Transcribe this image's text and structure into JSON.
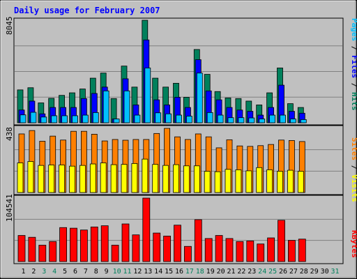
{
  "colors": {
    "background": "#C0C0C0",
    "plot": "#C0C0C0",
    "title": "#0000FF",
    "hits": "#00805C",
    "files": "#0000FF",
    "pages": "#00C0FF",
    "visits": "#FF8000",
    "sites": "#FFFF00",
    "kbytes": "#FF0000",
    "weekend_label": "#00805C",
    "weekday_label": "#000000"
  },
  "chart_data": {
    "type": "bar",
    "title": "Daily usage for February 2007",
    "days": [
      "1",
      "2",
      "3",
      "4",
      "5",
      "6",
      "7",
      "8",
      "9",
      "10",
      "11",
      "12",
      "13",
      "14",
      "15",
      "16",
      "17",
      "18",
      "19",
      "20",
      "21",
      "22",
      "23",
      "24",
      "25",
      "26",
      "27",
      "28",
      "29",
      "30",
      "31"
    ],
    "weekend_days": [
      "3",
      "4",
      "10",
      "11",
      "17",
      "18",
      "24",
      "25",
      "31"
    ],
    "panels": [
      {
        "id": "hits_files_pages",
        "max_label": "8045",
        "ymax": 8045,
        "legend": [
          "Pages",
          "/",
          "Files",
          "/",
          "Hits"
        ],
        "series": [
          {
            "name": "Hits",
            "values": [
              2580,
              2750,
              1560,
              1920,
              2150,
              2350,
              2650,
              3500,
              3900,
              1900,
              4450,
              2800,
              8045,
              3500,
              2800,
              3100,
              2000,
              5750,
              3800,
              2450,
              1950,
              1900,
              1700,
              1400,
              2350,
              4300,
              1500,
              1200
            ]
          },
          {
            "name": "Files",
            "values": [
              1000,
              1700,
              700,
              1200,
              1200,
              1200,
              1900,
              2300,
              2800,
              300,
              3450,
              1400,
              6500,
              1800,
              1400,
              2000,
              1200,
              4950,
              2500,
              1800,
              1200,
              1000,
              900,
              600,
              1200,
              2950,
              900,
              750
            ]
          },
          {
            "name": "Pages",
            "values": [
              620,
              820,
              450,
              550,
              550,
              550,
              600,
              800,
              2500,
              300,
              2500,
              600,
              4300,
              780,
              700,
              600,
              520,
              3900,
              800,
              600,
              400,
              400,
              380,
              300,
              600,
              600,
              300,
              250
            ]
          }
        ]
      },
      {
        "id": "visits_sites",
        "max_label": "438",
        "ymax": 438,
        "legend": [
          "Sites",
          "/",
          "Visits"
        ],
        "series": [
          {
            "name": "Visits",
            "values": [
              400,
              423,
              350,
              385,
              358,
              418,
              418,
              398,
              352,
              362,
              357,
              362,
              362,
              403,
              438,
              380,
              362,
              400,
              380,
              305,
              360,
              318,
              315,
              320,
              328,
              358,
              355,
              348
            ]
          },
          {
            "name": "Sites",
            "values": [
              202,
              212,
              185,
              188,
              188,
              180,
              185,
              195,
              202,
              190,
              192,
              198,
              228,
              192,
              185,
              190,
              182,
              182,
              145,
              142,
              158,
              155,
              148,
              170,
              155,
              145,
              152,
              145
            ]
          }
        ]
      },
      {
        "id": "kbytes",
        "max_label": "104541",
        "ymax": 104541,
        "legend": [
          "KBytes"
        ],
        "series": [
          {
            "name": "KBytes",
            "values": [
              43000,
              40000,
              27000,
              33000,
              56000,
              55000,
              52000,
              57000,
              59000,
              27000,
              62000,
              44000,
              104541,
              47000,
              42000,
              60000,
              25000,
              69000,
              38000,
              43000,
              38000,
              33000,
              34000,
              29000,
              39000,
              68000,
              35000,
              37000
            ]
          }
        ]
      }
    ]
  }
}
